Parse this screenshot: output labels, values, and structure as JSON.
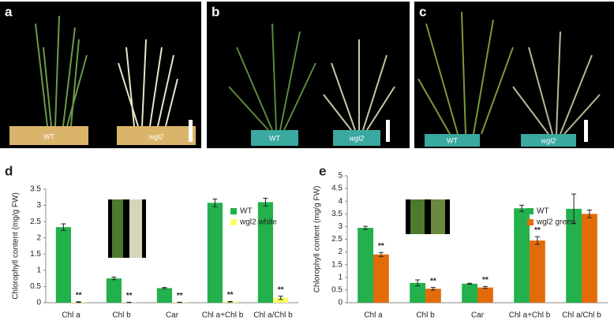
{
  "photos": [
    {
      "label": "a",
      "captions": [
        "WT",
        "wgl2"
      ]
    },
    {
      "label": "b",
      "captions": [
        "WT",
        "wgl2"
      ]
    },
    {
      "label": "c",
      "captions": [
        "WT",
        "wgl2"
      ]
    }
  ],
  "chart_data": [
    {
      "type": "bar",
      "panel": "d",
      "y_label": "Chlorophyll content (mg/g FW)",
      "categories": [
        "Chl a",
        "Chl b",
        "Car",
        "Chl a+Chl b",
        "Chl a/Chl b"
      ],
      "series": [
        {
          "name": "WT",
          "color": "#22b14c",
          "values": [
            2.33,
            0.75,
            0.45,
            3.08,
            3.1
          ],
          "errors": [
            0.1,
            0.04,
            0.02,
            0.12,
            0.12
          ]
        },
        {
          "name": "wgl2 white",
          "color": "#ffff66",
          "values": [
            0.02,
            0.01,
            0.01,
            0.03,
            0.15
          ],
          "errors": [
            0.01,
            0.005,
            0.005,
            0.01,
            0.05
          ]
        }
      ],
      "annotations": [
        "**",
        "**",
        "**",
        "**",
        "**"
      ],
      "ylim": [
        0,
        3.5
      ],
      "yticks": [
        0,
        0.5,
        1,
        1.5,
        2,
        2.5,
        3,
        3.5
      ]
    },
    {
      "type": "bar",
      "panel": "e",
      "y_label": "Chlorophyll content (mg/g FW)",
      "categories": [
        "Chl a",
        "Chl b",
        "Car",
        "Chl a+Chl b",
        "Chl a/Chl b"
      ],
      "series": [
        {
          "name": "WT",
          "color": "#22b14c",
          "values": [
            2.95,
            0.78,
            0.75,
            3.72,
            3.7
          ],
          "errors": [
            0.06,
            0.12,
            0.02,
            0.12,
            0.58
          ]
        },
        {
          "name": "wgl2 green",
          "color": "#e36c0a",
          "values": [
            1.9,
            0.55,
            0.6,
            2.45,
            3.5
          ],
          "errors": [
            0.08,
            0.05,
            0.04,
            0.15,
            0.15
          ]
        }
      ],
      "annotations": [
        "**",
        "**",
        "**",
        "**"
      ],
      "ylim": [
        0,
        5
      ],
      "yticks": [
        0,
        0.5,
        1,
        1.5,
        2,
        2.5,
        3,
        3.5,
        4,
        4.5,
        5
      ]
    }
  ]
}
